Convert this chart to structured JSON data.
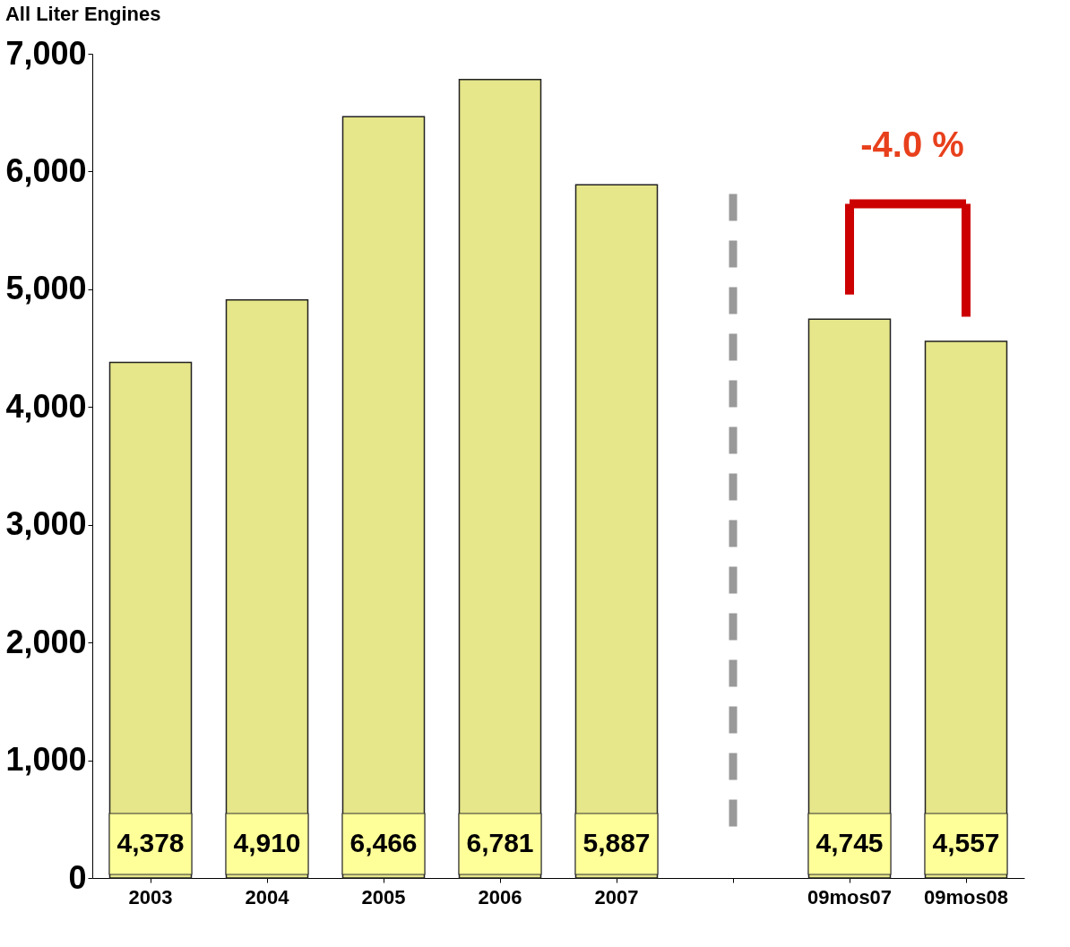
{
  "chart_data": {
    "type": "bar",
    "title": "All Liter Engines",
    "categories": [
      "2003",
      "2004",
      "2005",
      "2006",
      "2007",
      null,
      "09mos07",
      "09mos08"
    ],
    "values": [
      4378,
      4910,
      6466,
      6781,
      5887,
      null,
      4745,
      4557
    ],
    "color": "#e6e68a",
    "value_labels": [
      "4,378",
      "4,910",
      "6,466",
      "6,781",
      "5,887",
      null,
      "4,745",
      "4,557"
    ],
    "ylim": [
      0,
      7000
    ],
    "yticks": [
      0,
      {
        "value": 1000,
        "label": "1,000"
      },
      {
        "value": 2000,
        "label": "2,000"
      },
      {
        "value": 3000,
        "label": "3,000"
      },
      {
        "value": 4000,
        "label": "4,000"
      },
      {
        "value": 5000,
        "label": "5,000"
      },
      {
        "value": 6000,
        "label": "6,000"
      },
      {
        "value": 7000,
        "label": "7,000"
      }
    ],
    "ref_lines": [
      {
        "axis": "x",
        "value": null,
        "color": "#999999",
        "line_style": "dashed"
      }
    ],
    "annotations": [
      "-4.0 %"
    ]
  }
}
